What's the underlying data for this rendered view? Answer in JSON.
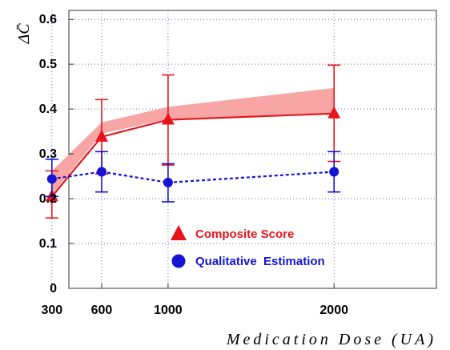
{
  "chart_data": {
    "type": "line",
    "xlabel": "Medication Dose  (UA)",
    "ylabel": "ΔC̄",
    "x": [
      300,
      600,
      1000,
      2000
    ],
    "x_ticks": [
      "300",
      "600",
      "1000",
      "2000"
    ],
    "xlim": [
      0,
      2200
    ],
    "ylim": [
      0,
      0.62
    ],
    "y_ticks": [
      "0",
      "0.1",
      "0.2",
      "0.3",
      "0.4",
      "0.5",
      "0.6"
    ],
    "grid": true,
    "legend_position": "lower-center",
    "series": [
      {
        "name": "Composite Score",
        "color": "#e8141c",
        "marker": "triangle",
        "line_style": "solid",
        "values": [
          0.205,
          0.338,
          0.376,
          0.39
        ],
        "error_low": [
          0.157,
          0.255,
          0.275,
          0.283
        ],
        "error_high": [
          0.262,
          0.421,
          0.476,
          0.498
        ],
        "band_low": [
          0.21,
          0.345,
          0.378,
          0.392
        ],
        "band_high": [
          0.262,
          0.37,
          0.405,
          0.447
        ],
        "band_color": "#f7a5a5"
      },
      {
        "name": "Qualitative  Estimation",
        "color": "#1414d2",
        "marker": "circle",
        "line_style": "dashed",
        "values": [
          0.244,
          0.26,
          0.236,
          0.26
        ],
        "error_low": [
          0.205,
          0.215,
          0.193,
          0.215
        ],
        "error_high": [
          0.288,
          0.305,
          0.278,
          0.305
        ]
      }
    ]
  }
}
